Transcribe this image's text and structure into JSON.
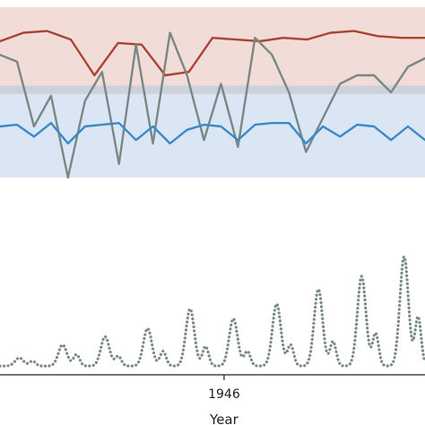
{
  "chart_data": [
    {
      "type": "line",
      "title": "",
      "xlabel": "",
      "ylabel": "",
      "grid": false,
      "bands": [
        {
          "name": "upper-band",
          "color": "#f2dcd8",
          "y_range": [
            0.0,
            0.46
          ]
        },
        {
          "name": "overlap-band",
          "color": "#cdd1db",
          "y_range": [
            0.46,
            0.51
          ]
        },
        {
          "name": "lower-band",
          "color": "#dbe6f5",
          "y_range": [
            0.51,
            1.0
          ]
        }
      ],
      "series": [
        {
          "color": "#a84534",
          "x": [
            0,
            1,
            2,
            3,
            4,
            5,
            6,
            7,
            8,
            9,
            10,
            11,
            12,
            13,
            14,
            15,
            16,
            17,
            18
          ],
          "values": [
            0.8,
            0.85,
            0.86,
            0.81,
            0.6,
            0.79,
            0.78,
            0.6,
            0.62,
            0.82,
            0.81,
            0.8,
            0.82,
            0.81,
            0.85,
            0.86,
            0.83,
            0.82,
            0.82
          ]
        },
        {
          "color": "#7a8884",
          "x": [
            0,
            1,
            2,
            3,
            4,
            5,
            6,
            7,
            8,
            9,
            10,
            11,
            12,
            13,
            14,
            15,
            16,
            17,
            18,
            19,
            20,
            21,
            22,
            23,
            24,
            25
          ],
          "values": [
            0.72,
            0.68,
            0.3,
            0.48,
            0.0,
            0.45,
            0.62,
            0.08,
            0.78,
            0.2,
            0.85,
            0.6,
            0.22,
            0.55,
            0.18,
            0.82,
            0.72,
            0.5,
            0.15,
            0.35,
            0.55,
            0.6,
            0.6,
            0.5,
            0.65,
            0.7
          ]
        },
        {
          "color": "#3a8ac9",
          "x": [
            0,
            1,
            2,
            3,
            4,
            5,
            6,
            7,
            8,
            9,
            10,
            11,
            12,
            13,
            14,
            15,
            16,
            17,
            18,
            19,
            20,
            21,
            22,
            23,
            24,
            25
          ],
          "values": [
            0.3,
            0.31,
            0.24,
            0.32,
            0.2,
            0.3,
            0.31,
            0.32,
            0.22,
            0.3,
            0.2,
            0.28,
            0.31,
            0.3,
            0.22,
            0.31,
            0.32,
            0.32,
            0.2,
            0.3,
            0.24,
            0.31,
            0.3,
            0.22,
            0.3,
            0.22
          ]
        }
      ]
    },
    {
      "type": "line",
      "title": "",
      "xlabel": "Year",
      "ylabel": "",
      "grid": false,
      "xticks": [
        "1946"
      ],
      "line_style": "dotted",
      "series": [
        {
          "color": "#7a8a86",
          "peak_times": [
            1919.5,
            1925.1,
            1930.6,
            1936.1,
            1941.6,
            1947.2,
            1952.8,
            1958.2,
            1963.8,
            1969.3
          ],
          "peak_values": [
            0.05,
            0.13,
            0.18,
            0.23,
            0.35,
            0.29,
            0.38,
            0.47,
            0.55,
            0.67
          ],
          "secondary_peak_times": [
            1921.2,
            1926.9,
            1932.3,
            1938.1,
            1943.6,
            1949.0,
            1954.6,
            1960.1,
            1965.6,
            1971.1
          ],
          "secondary_peak_values": [
            0.03,
            0.07,
            0.06,
            0.09,
            0.12,
            0.09,
            0.13,
            0.15,
            0.2,
            0.3
          ]
        }
      ]
    }
  ]
}
